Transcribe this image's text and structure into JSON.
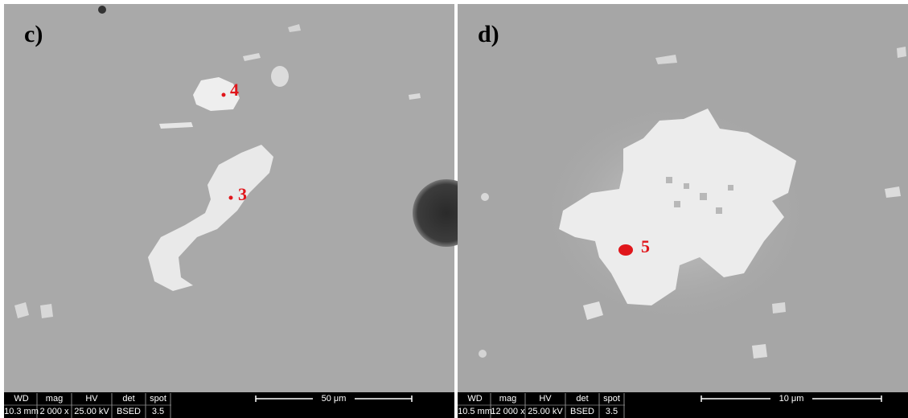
{
  "panels": [
    {
      "label": "c)",
      "markers": [
        "4",
        "3"
      ],
      "info_headers": [
        "WD",
        "mag",
        "HV",
        "det",
        "spot"
      ],
      "info_values": [
        "10.3 mm",
        "2 000 x",
        "25.00 kV",
        "BSED",
        "3.5"
      ],
      "scale": "50 μm"
    },
    {
      "label": "d)",
      "markers": [
        "5"
      ],
      "info_headers": [
        "WD",
        "mag",
        "HV",
        "det",
        "spot"
      ],
      "info_values": [
        "10.5 mm",
        "12 000 x",
        "25.00 kV",
        "BSED",
        "3.5"
      ],
      "scale": "10 μm"
    }
  ]
}
